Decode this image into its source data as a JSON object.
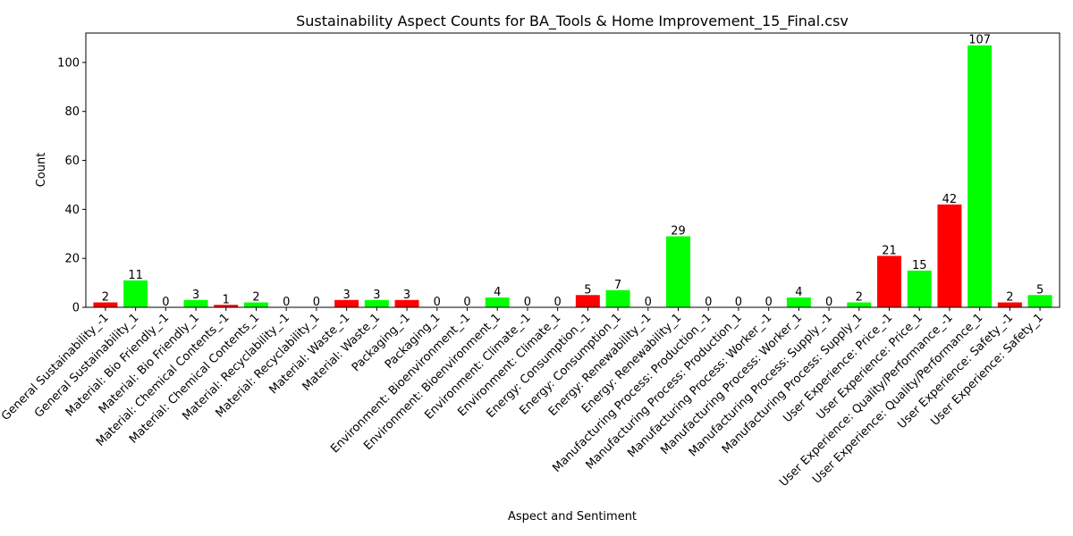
{
  "chart_data": {
    "type": "bar",
    "title": "Sustainability Aspect Counts for BA_Tools & Home Improvement_15_Final.csv",
    "xlabel": "Aspect and Sentiment",
    "ylabel": "Count",
    "ylim": [
      0,
      112
    ],
    "yticks": [
      0,
      20,
      40,
      60,
      80,
      100
    ],
    "grid": false,
    "colors": {
      "negative": "#ff0000",
      "positive": "#00ff00"
    },
    "categories": [
      "General Sustainability_-1",
      "General Sustainability_1",
      "Material: Bio Friendly_-1",
      "Material: Bio Friendly_1",
      "Material: Chemical Contents_-1",
      "Material: Chemical Contents_1",
      "Material: Recyclability_-1",
      "Material: Recyclability_1",
      "Material: Waste_-1",
      "Material: Waste_1",
      "Packaging_-1",
      "Packaging_1",
      "Environment: Bioenvironment_-1",
      "Environment: Bioenvironment_1",
      "Environment: Climate_-1",
      "Environment: Climate_1",
      "Energy: Consumption_-1",
      "Energy: Consumption_1",
      "Energy: Renewability_-1",
      "Energy: Renewability_1",
      "Manufacturing Process: Production_-1",
      "Manufacturing Process: Production_1",
      "Manufacturing Process: Worker_-1",
      "Manufacturing Process: Worker_1",
      "Manufacturing Process: Supply_-1",
      "Manufacturing Process: Supply_1",
      "User Experience: Price_-1",
      "User Experience: Price_1",
      "User Experience: Quality/Performance_-1",
      "User Experience: Quality/Performance_1",
      "User Experience: Safety_-1",
      "User Experience: Safety_1"
    ],
    "values": [
      2,
      11,
      0,
      3,
      1,
      2,
      0,
      0,
      3,
      3,
      3,
      0,
      0,
      4,
      0,
      0,
      5,
      7,
      0,
      29,
      0,
      0,
      0,
      4,
      0,
      2,
      21,
      15,
      42,
      107,
      2,
      5
    ],
    "sentiment": [
      "-1",
      "1",
      "-1",
      "1",
      "-1",
      "1",
      "-1",
      "1",
      "-1",
      "1",
      "-1",
      "1",
      "-1",
      "1",
      "-1",
      "1",
      "-1",
      "1",
      "-1",
      "1",
      "-1",
      "1",
      "-1",
      "1",
      "-1",
      "1",
      "-1",
      "1",
      "-1",
      "1",
      "-1",
      "1"
    ]
  }
}
